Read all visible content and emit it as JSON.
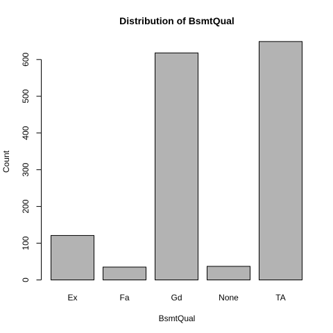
{
  "chart_data": {
    "type": "bar",
    "title": "Distribution of BsmtQual",
    "xlabel": "BsmtQual",
    "ylabel": "Count",
    "categories": [
      "Ex",
      "Fa",
      "Gd",
      "None",
      "TA"
    ],
    "values": [
      121,
      35,
      618,
      37,
      649
    ],
    "ylim": [
      0,
      600
    ],
    "yticks": [
      0,
      100,
      200,
      300,
      400,
      500,
      600
    ],
    "grid": false,
    "bar_color": "#b3b3b3",
    "border_color": "#000000"
  }
}
